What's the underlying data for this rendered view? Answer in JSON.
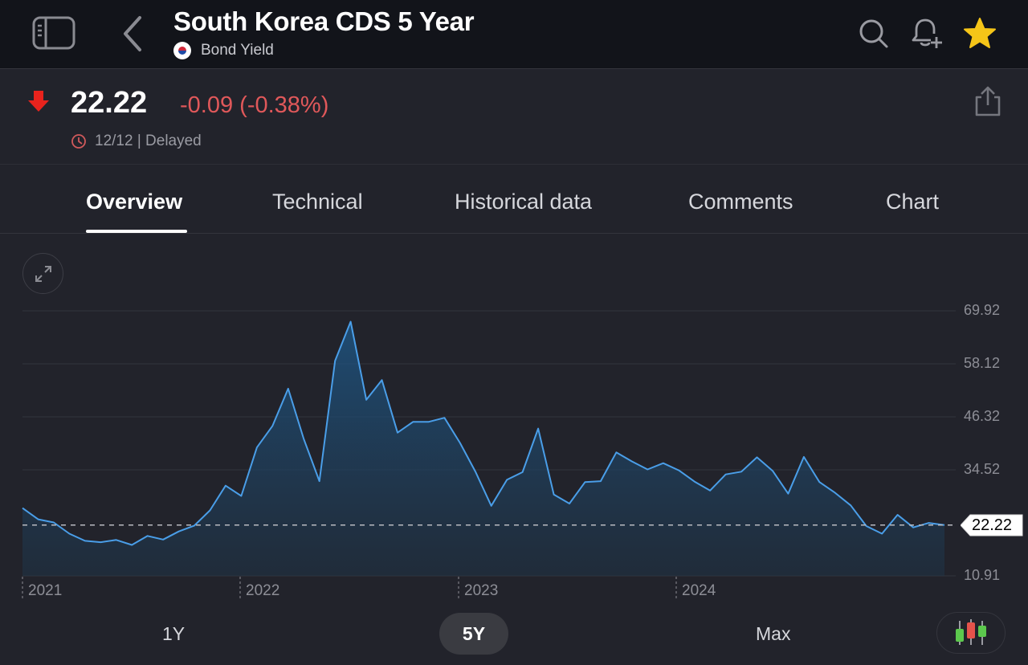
{
  "header": {
    "title": "South Korea CDS 5 Year",
    "subtitle": "Bond Yield",
    "flag": "south-korea-flag",
    "icons": [
      "sidebar-toggle-icon",
      "back-chevron-icon",
      "search-icon",
      "bell-plus-icon",
      "star-icon"
    ],
    "star_color": "#f5c518"
  },
  "quote": {
    "price": "22.22",
    "change": "-0.09 (-0.38%)",
    "direction": "down",
    "date": "12/12",
    "status": "Delayed",
    "meta": "12/12 | Delayed",
    "negative_color": "#e0585a",
    "arrow_color": "#e8231d"
  },
  "tabs": [
    {
      "label": "Overview",
      "active": true
    },
    {
      "label": "Technical",
      "active": false
    },
    {
      "label": "Historical data",
      "active": false
    },
    {
      "label": "Comments",
      "active": false
    },
    {
      "label": "Chart",
      "active": false
    }
  ],
  "ranges": [
    {
      "label": "1Y",
      "active": false
    },
    {
      "label": "5Y",
      "active": true
    },
    {
      "label": "Max",
      "active": false
    }
  ],
  "chart_data": {
    "type": "area",
    "title": "South Korea CDS 5 Year",
    "xlabel": "",
    "ylabel": "",
    "x_ticks": [
      "2021",
      "2022",
      "2023",
      "2024"
    ],
    "y_ticks": [
      69.92,
      58.12,
      46.32,
      34.52,
      10.91
    ],
    "ylim": [
      10.91,
      69.92
    ],
    "last_value": 22.22,
    "last_value_label": "22.22",
    "grid": true,
    "line_color": "#4a9ee8",
    "series": [
      {
        "name": "South Korea CDS 5 Year",
        "x": [
          "2021-01",
          "2021-02",
          "2021-03",
          "2021-04",
          "2021-05",
          "2021-06",
          "2021-07",
          "2021-08",
          "2021-09",
          "2021-10",
          "2021-11",
          "2021-12",
          "2022-01",
          "2022-02",
          "2022-03",
          "2022-04",
          "2022-05",
          "2022-06",
          "2022-07",
          "2022-08",
          "2022-09",
          "2022-10",
          "2022-11",
          "2022-12",
          "2023-01",
          "2023-02",
          "2023-03",
          "2023-04",
          "2023-05",
          "2023-06",
          "2023-07",
          "2023-08",
          "2023-09",
          "2023-10",
          "2023-11",
          "2023-12",
          "2024-01",
          "2024-02",
          "2024-03",
          "2024-04",
          "2024-05",
          "2024-06",
          "2024-07",
          "2024-08",
          "2024-09",
          "2024-10",
          "2024-11",
          "2024-12",
          "2025-01",
          "2025-02",
          "2025-03",
          "2025-04",
          "2025-05",
          "2025-06",
          "2025-07",
          "2025-08",
          "2025-09",
          "2025-10",
          "2025-11",
          "2025-12"
        ],
        "values": [
          26.0,
          23.5,
          22.8,
          20.3,
          18.7,
          18.4,
          18.9,
          17.8,
          19.8,
          19.0,
          20.8,
          22.1,
          25.5,
          31.0,
          28.7,
          39.5,
          44.3,
          52.6,
          41.4,
          32.0,
          58.8,
          67.5,
          50.1,
          54.5,
          42.8,
          45.2,
          45.2,
          46.1,
          40.5,
          34.0,
          26.5,
          32.3,
          34.0,
          43.7,
          29.0,
          27.0,
          31.8,
          32.0,
          38.4,
          36.4,
          34.6,
          36.0,
          34.4,
          31.9,
          29.9,
          33.5,
          34.1,
          37.3,
          34.3,
          29.2,
          37.4,
          31.8,
          29.4,
          26.6,
          22.0,
          20.3,
          24.5,
          21.7,
          22.7,
          22.22
        ]
      }
    ]
  }
}
